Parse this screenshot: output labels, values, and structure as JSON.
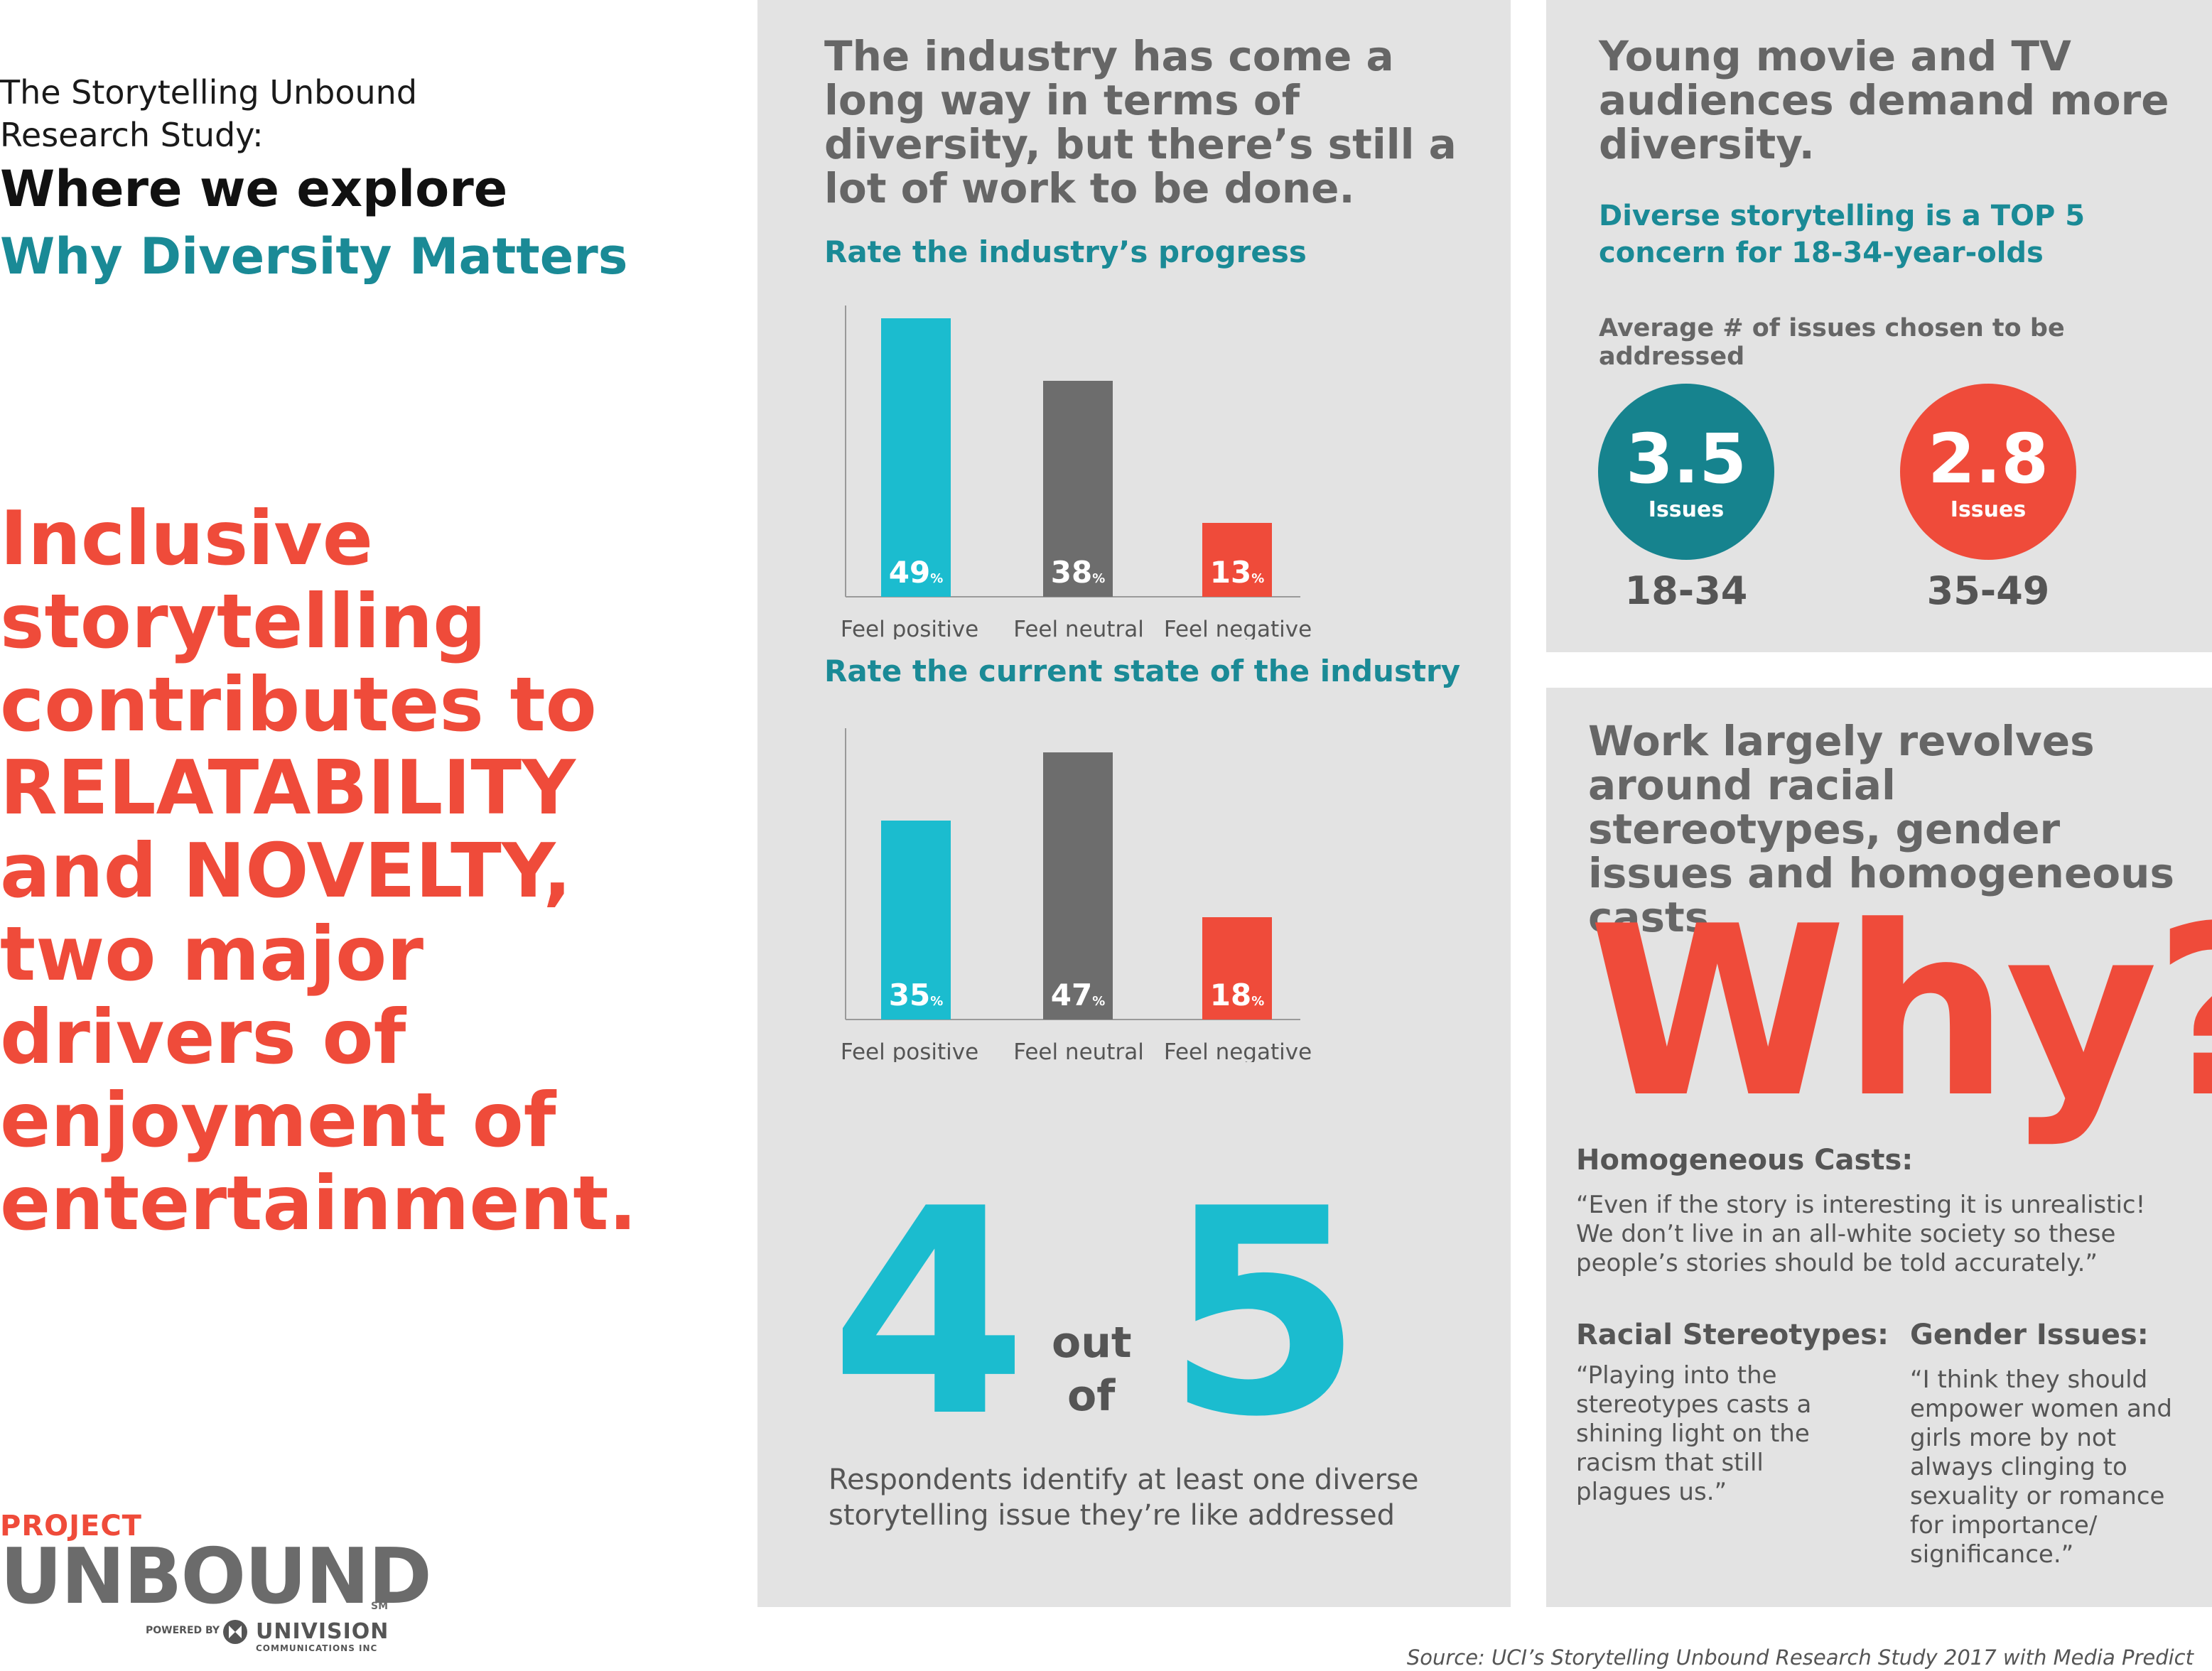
{
  "left": {
    "study_title": "The Storytelling Unbound\nResearch Study:",
    "explore": "Where we explore",
    "why_diversity": "Why Diversity Matters",
    "statement": "Inclusive storytelling contributes to RELATABILITY and NOVELTY, two major drivers of enjoyment of entertainment."
  },
  "logo": {
    "project": "PROJECT",
    "unbound": "UNBOUND",
    "sm": "SM",
    "powered_by": "POWERED BY",
    "univision": "UNIVISION",
    "communications": "COMMUNICATIONS INC"
  },
  "middle": {
    "headline": "The industry has come a long way in terms of diversity, but there’s still a lot of work to be done.",
    "four": "4",
    "out": "out",
    "of": "of",
    "five": "5",
    "respondents": "Respondents identify at least one diverse storytelling issue they’re like addressed"
  },
  "chart_data": [
    {
      "type": "bar",
      "title": "Rate the industry’s progress",
      "categories": [
        "Feel positive",
        "Feel neutral",
        "Feel negative"
      ],
      "values": [
        49,
        38,
        13
      ],
      "labels": [
        "49",
        "38",
        "13"
      ],
      "unit": "%",
      "colors": [
        "#1bbccf",
        "#6d6d6d",
        "#ef4b3a"
      ],
      "ylim": [
        0,
        50
      ]
    },
    {
      "type": "bar",
      "title": "Rate the current state of the industry",
      "categories": [
        "Feel positive",
        "Feel neutral",
        "Feel negative"
      ],
      "values": [
        35,
        47,
        18
      ],
      "labels": [
        "35",
        "47",
        "18"
      ],
      "unit": "%",
      "colors": [
        "#1bbccf",
        "#6d6d6d",
        "#ef4b3a"
      ],
      "ylim": [
        0,
        50
      ]
    },
    {
      "type": "bar",
      "title": "Average # of issues chosen to be addressed",
      "categories": [
        "18-34",
        "35-49"
      ],
      "values": [
        3.5,
        2.8
      ],
      "labels": [
        "3.5",
        "2.8"
      ],
      "unit": "Issues",
      "colors": [
        "#16838e",
        "#ef4b3a"
      ]
    }
  ],
  "right_top": {
    "headline": "Young movie and TV audiences demand more diversity.",
    "concern": "Diverse storytelling is a TOP 5 concern for 18-34-year-olds"
  },
  "right_bottom": {
    "headline": "Work largely revolves around racial stereotypes, gender issues and homogeneous casts.",
    "why": "Why?",
    "homogeneous_title": "Homogeneous Casts:",
    "homogeneous_quote": "“Even if the story is interesting it is unrealistic! We don’t live in an all-white society so these people’s stories should be told accurately.”",
    "racial_title": "Racial Stereotypes:",
    "racial_quote": "“Playing into the stereotypes casts a shining light on the racism that still plagues us.”",
    "gender_title": "Gender Issues:",
    "gender_quote": "“I think they should empower women and girls more by not always clinging to sexuality or romance for importance/ significance.”"
  },
  "source": "Source: UCI’s Storytelling Unbound Research Study 2017 with Media Predict",
  "colors": {
    "teal_dark": "#1a8a96",
    "cyan": "#1bbccf",
    "coral": "#ef4b3a",
    "gray_bar": "#6d6d6d",
    "panel": "#e3e3e3"
  }
}
